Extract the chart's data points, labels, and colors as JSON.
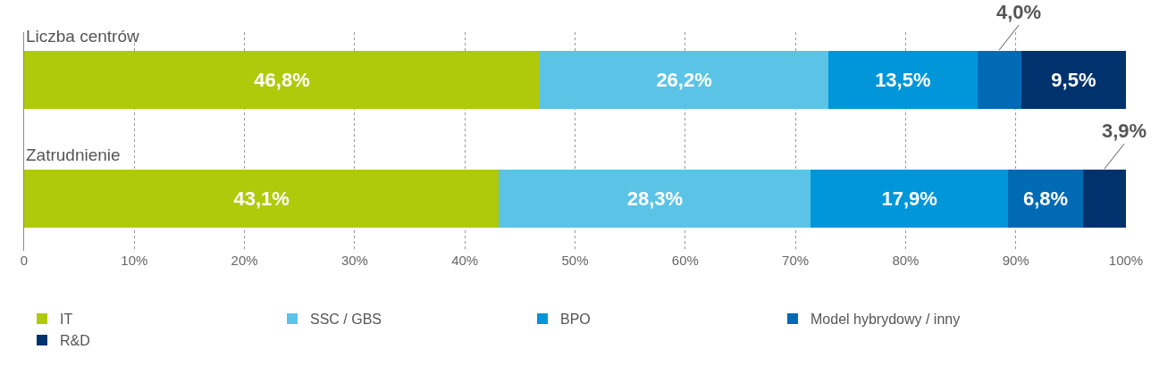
{
  "chart_data": {
    "type": "bar",
    "orientation": "horizontal",
    "stacked": true,
    "categories": [
      "Liczba centrów",
      "Zatrudnienie"
    ],
    "series": [
      {
        "name": "IT",
        "color": "#afca0b",
        "values": [
          46.8,
          43.1
        ],
        "value_labels": [
          "46,8%",
          "43,1%"
        ]
      },
      {
        "name": "SSC / GBS",
        "color": "#5bc4e6",
        "values": [
          26.2,
          28.3
        ],
        "value_labels": [
          "26,2%",
          "28,3%"
        ]
      },
      {
        "name": "BPO",
        "color": "#0096d9",
        "values": [
          13.5,
          17.9
        ],
        "value_labels": [
          "13,5%",
          "17,9%"
        ]
      },
      {
        "name": "Model hybrydowy / inny",
        "color": "#006ab4",
        "values": [
          4.0,
          6.8
        ],
        "value_labels": [
          "4,0%",
          "6,8%"
        ]
      },
      {
        "name": "R&D",
        "color": "#00336e",
        "values": [
          9.5,
          3.9
        ],
        "value_labels": [
          "9,5%",
          "3,9%"
        ]
      }
    ],
    "xlim": [
      0,
      100
    ],
    "xticks": [
      0,
      {
        "value": 10,
        "label": "10%"
      },
      {
        "value": 20,
        "label": "20%"
      },
      {
        "value": 30,
        "label": "30%"
      },
      {
        "value": 40,
        "label": "40%"
      },
      {
        "value": 50,
        "label": "50%"
      },
      {
        "value": 60,
        "label": "60%"
      },
      {
        "value": 70,
        "label": "70%"
      },
      {
        "value": 80,
        "label": "80%"
      },
      {
        "value": 90,
        "label": "90%"
      },
      {
        "value": 100,
        "label": "100%"
      }
    ],
    "grid": "x",
    "legend": "bottom"
  }
}
